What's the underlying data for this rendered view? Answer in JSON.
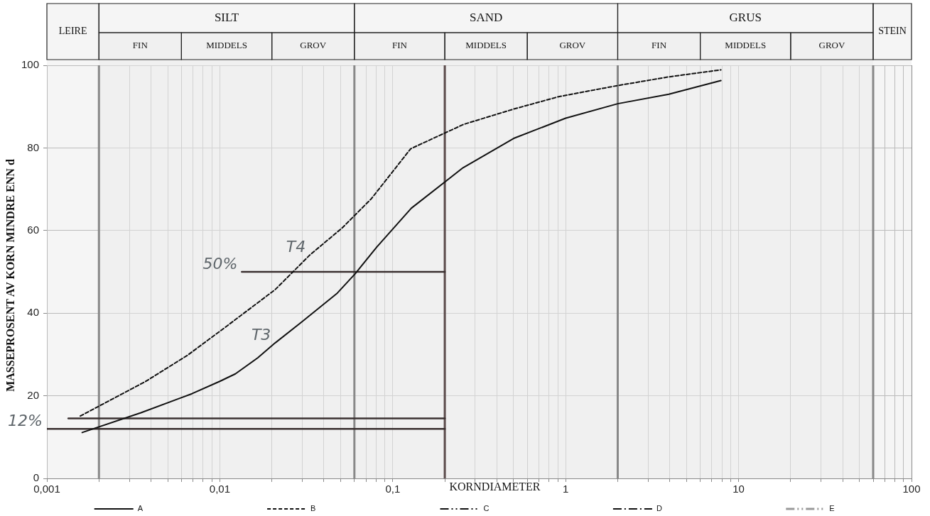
{
  "chart_data": {
    "type": "line",
    "xlabel": "KORNDIAMETER",
    "ylabel": "MASSEPROSENT AV KORN MINDRE ENN d",
    "log": "x",
    "xlim": [
      0.001,
      100
    ],
    "ylim": [
      0,
      100
    ],
    "xticks": [
      {
        "value": 0.001,
        "label": "0,001"
      },
      {
        "value": 0.002,
        "label": null
      },
      {
        "value": 0.003,
        "label": null
      },
      {
        "value": 0.004,
        "label": null
      },
      {
        "value": 0.005,
        "label": null
      },
      {
        "value": 0.006,
        "label": null
      },
      {
        "value": 0.007,
        "label": null
      },
      {
        "value": 0.008,
        "label": null
      },
      {
        "value": 0.009,
        "label": null
      },
      {
        "value": 0.01,
        "label": "0,01"
      },
      {
        "value": 0.02,
        "label": null
      },
      {
        "value": 0.03,
        "label": null
      },
      {
        "value": 0.04,
        "label": null
      },
      {
        "value": 0.05,
        "label": null
      },
      {
        "value": 0.06,
        "label": null
      },
      {
        "value": 0.07,
        "label": null
      },
      {
        "value": 0.08,
        "label": null
      },
      {
        "value": 0.09,
        "label": null
      },
      {
        "value": 0.1,
        "label": "0,1"
      },
      {
        "value": 0.2,
        "label": null
      },
      {
        "value": 0.3,
        "label": null
      },
      {
        "value": 0.4,
        "label": null
      },
      {
        "value": 0.5,
        "label": null
      },
      {
        "value": 0.6,
        "label": null
      },
      {
        "value": 0.7,
        "label": null
      },
      {
        "value": 0.8,
        "label": null
      },
      {
        "value": 0.9,
        "label": null
      },
      {
        "value": 1,
        "label": "1"
      },
      {
        "value": 2,
        "label": null
      },
      {
        "value": 3,
        "label": null
      },
      {
        "value": 4,
        "label": null
      },
      {
        "value": 5,
        "label": null
      },
      {
        "value": 6,
        "label": null
      },
      {
        "value": 7,
        "label": null
      },
      {
        "value": 8,
        "label": null
      },
      {
        "value": 9,
        "label": null
      },
      {
        "value": 10,
        "label": "10"
      },
      {
        "value": 20,
        "label": null
      },
      {
        "value": 30,
        "label": null
      },
      {
        "value": 40,
        "label": null
      },
      {
        "value": 50,
        "label": null
      },
      {
        "value": 60,
        "label": null
      },
      {
        "value": 70,
        "label": null
      },
      {
        "value": 80,
        "label": null
      },
      {
        "value": 90,
        "label": null
      },
      {
        "value": 100,
        "label": "100"
      }
    ],
    "yticks": [
      0,
      20,
      40,
      60,
      80,
      100
    ],
    "grid": true,
    "legend": "bottom",
    "series": [
      {
        "name": "A",
        "color": "#111111",
        "line_style": "solid",
        "x": [
          0.0016,
          0.0035,
          0.0069,
          0.01,
          0.0123,
          0.0166,
          0.0209,
          0.0298,
          0.0474,
          0.0608,
          0.0808,
          0.128,
          0.255,
          0.5,
          1,
          2,
          3.95,
          7.9
        ],
        "values": [
          11.1,
          15.9,
          20.5,
          23.5,
          25.3,
          29.2,
          32.8,
          37.9,
          44.7,
          49.6,
          56,
          65.4,
          75.2,
          82.3,
          87.2,
          90.7,
          93,
          96.3
        ]
      },
      {
        "name": "B",
        "color": "#111111",
        "line_style": "dashed",
        "x": [
          0.00156,
          0.0037,
          0.0065,
          0.0103,
          0.0209,
          0.0332,
          0.0509,
          0.0752,
          0.127,
          0.257,
          0.5,
          0.91,
          2,
          3.95,
          7.9
        ],
        "values": [
          15.1,
          23.4,
          29.8,
          36,
          45.7,
          54.1,
          60.6,
          67.7,
          79.8,
          85.7,
          89.4,
          92.4,
          95.1,
          97.2,
          98.9
        ]
      },
      {
        "name": "C",
        "color": "#111111",
        "line_style": "dashdotdot"
      },
      {
        "name": "D",
        "color": "#111111",
        "line_style": "dashdot"
      },
      {
        "name": "E",
        "color": "#999999",
        "line_style": "dashdotdot"
      },
      {
        "color": "#3a3030",
        "line_style": "solid",
        "x": [
          0.0134,
          0.2
        ],
        "values": [
          50,
          50
        ]
      },
      {
        "color": "#3a3030",
        "line_style": "solid",
        "x": [
          0.00133,
          0.2
        ],
        "values": [
          14.5,
          14.5
        ]
      },
      {
        "color": "#3a3030",
        "line_style": "solid",
        "x": [
          0.001,
          0.2
        ],
        "values": [
          12,
          12
        ]
      }
    ],
    "ref_lines": [
      {
        "axis": "x",
        "value": 0.002,
        "color": "#888888"
      },
      {
        "axis": "x",
        "value": 0.06,
        "color": "#888888"
      },
      {
        "axis": "x",
        "value": 2,
        "color": "#888888"
      },
      {
        "axis": "x",
        "value": 60,
        "color": "#888888"
      },
      {
        "axis": "x",
        "value": 0.2,
        "color": "#5b4b4b"
      }
    ],
    "bands": [
      {
        "axis": "x",
        "from": 0.001,
        "to": 0.002,
        "label": "LEIRE"
      },
      {
        "axis": "x",
        "from": 0.002,
        "to": 0.06,
        "label": "SILT"
      },
      {
        "axis": "x",
        "from": 0.06,
        "to": 2,
        "label": "SAND"
      },
      {
        "axis": "x",
        "from": 2,
        "to": 60,
        "label": "GRUS"
      },
      {
        "axis": "x",
        "from": 60,
        "to": 100,
        "label": "STEIN"
      },
      {
        "axis": "x",
        "from": 0.002,
        "to": 0.006,
        "label": "FIN"
      },
      {
        "axis": "x",
        "from": 0.006,
        "to": 0.02,
        "label": "MIDDELS"
      },
      {
        "axis": "x",
        "from": 0.02,
        "to": 0.06,
        "label": "GROV"
      },
      {
        "axis": "x",
        "from": 0.06,
        "to": 0.2,
        "label": "FIN"
      },
      {
        "axis": "x",
        "from": 0.2,
        "to": 0.6,
        "label": "MIDDELS"
      },
      {
        "axis": "x",
        "from": 0.6,
        "to": 2,
        "label": "GROV"
      },
      {
        "axis": "x",
        "from": 2,
        "to": 6,
        "label": "FIN"
      },
      {
        "axis": "x",
        "from": 6,
        "to": 20,
        "label": "MIDDELS"
      },
      {
        "axis": "x",
        "from": 20,
        "to": 60,
        "label": "GROV"
      }
    ],
    "annotations": [
      {
        "text": "50%",
        "x": 0.0134,
        "y": 50
      },
      {
        "text": "12%",
        "x": 0.001,
        "y": 12
      },
      {
        "text": "T4",
        "x": 0.0332,
        "y": 54.1
      },
      {
        "text": "T3",
        "x": 0.0209,
        "y": 32.8
      }
    ]
  }
}
